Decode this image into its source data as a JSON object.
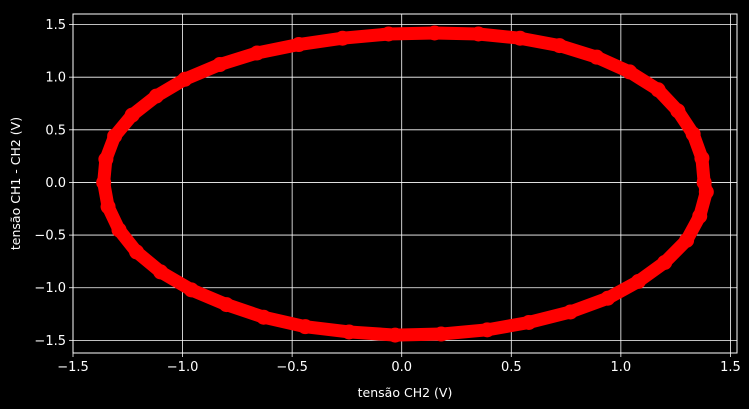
{
  "chart_data": {
    "type": "scatter",
    "title": "",
    "xlabel": "tensão CH2 (V)",
    "ylabel": "tensão CH1 - CH2 (V)",
    "xlim": [
      -1.5,
      1.53
    ],
    "ylim": [
      -1.62,
      1.6
    ],
    "x_ticks": [
      -1.5,
      -1.0,
      -0.5,
      0.0,
      0.5,
      1.0,
      1.5
    ],
    "x_tick_labels": [
      "−1.5",
      "−1.0",
      "−0.5",
      "0.0",
      "0.5",
      "1.0",
      "1.5"
    ],
    "y_ticks": [
      -1.5,
      -1.0,
      -0.5,
      0.0,
      0.5,
      1.0,
      1.5
    ],
    "y_tick_labels": [
      "−1.5",
      "−1.0",
      "−0.5",
      "0.0",
      "0.5",
      "1.0",
      "1.5"
    ],
    "grid": true,
    "background": "#000000",
    "foreground": "#ffffff",
    "series": [
      {
        "color": "#ff0000",
        "marker": "circle",
        "points": [
          [
            1.38,
            0.0
          ],
          [
            1.37,
            0.23
          ],
          [
            1.33,
            0.46
          ],
          [
            1.26,
            0.68
          ],
          [
            1.17,
            0.88
          ],
          [
            1.04,
            1.05
          ],
          [
            0.89,
            1.19
          ],
          [
            0.72,
            1.3
          ],
          [
            0.54,
            1.37
          ],
          [
            0.35,
            1.41
          ],
          [
            0.15,
            1.42
          ],
          [
            -0.06,
            1.41
          ],
          [
            -0.27,
            1.37
          ],
          [
            -0.47,
            1.31
          ],
          [
            -0.66,
            1.23
          ],
          [
            -0.83,
            1.12
          ],
          [
            -0.99,
            0.98
          ],
          [
            -1.12,
            0.82
          ],
          [
            -1.23,
            0.64
          ],
          [
            -1.31,
            0.44
          ],
          [
            -1.35,
            0.22
          ],
          [
            -1.36,
            0.0
          ],
          [
            -1.34,
            -0.23
          ],
          [
            -1.29,
            -0.45
          ],
          [
            -1.21,
            -0.66
          ],
          [
            -1.1,
            -0.85
          ],
          [
            -0.96,
            -1.02
          ],
          [
            -0.8,
            -1.16
          ],
          [
            -0.63,
            -1.28
          ],
          [
            -0.44,
            -1.37
          ],
          [
            -0.24,
            -1.42
          ],
          [
            -0.03,
            -1.45
          ],
          [
            0.18,
            -1.44
          ],
          [
            0.39,
            -1.4
          ],
          [
            0.58,
            -1.33
          ],
          [
            0.77,
            -1.23
          ],
          [
            0.94,
            -1.1
          ],
          [
            1.08,
            -0.94
          ],
          [
            1.2,
            -0.76
          ],
          [
            1.3,
            -0.55
          ],
          [
            1.36,
            -0.32
          ],
          [
            1.39,
            -0.09
          ]
        ]
      }
    ]
  }
}
